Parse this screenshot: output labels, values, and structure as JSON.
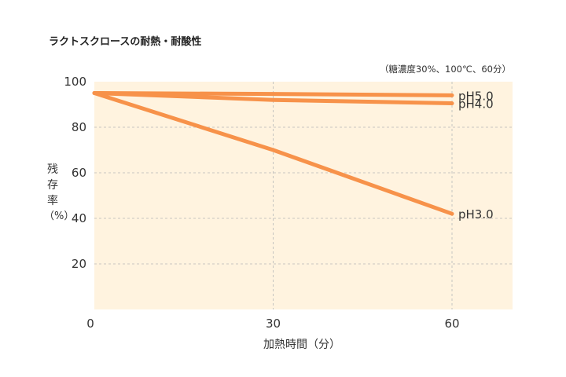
{
  "title": "ラクトスクロースの耐熱・耐酸性",
  "note": "（糖濃度30%、100℃、60分）",
  "chart_data": {
    "type": "line",
    "ylabel_chars": [
      "残",
      "存",
      "率",
      "（%）"
    ],
    "xlabel": "加熱時間（分）",
    "xlim": [
      0,
      70
    ],
    "ylim": [
      0,
      100
    ],
    "xticks": [
      0,
      30,
      60
    ],
    "yticks": [
      20,
      40,
      60,
      80,
      100
    ],
    "grid": true,
    "series": [
      {
        "name": "pH5.0",
        "color": "#f7924a",
        "x": [
          0,
          30,
          60
        ],
        "y": [
          95,
          94.6,
          94
        ]
      },
      {
        "name": "pH4.0",
        "color": "#f7924a",
        "x": [
          0,
          30,
          60
        ],
        "y": [
          95,
          92,
          90.5
        ]
      },
      {
        "name": "pH3.0",
        "color": "#f7924a",
        "x": [
          0,
          30,
          60
        ],
        "y": [
          95,
          70,
          42
        ]
      }
    ],
    "plot_bg": "#fff3df",
    "grid_color": "#b8b8b8"
  }
}
